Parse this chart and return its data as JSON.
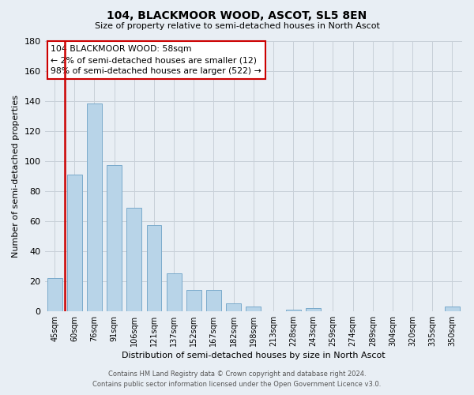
{
  "title": "104, BLACKMOOR WOOD, ASCOT, SL5 8EN",
  "subtitle": "Size of property relative to semi-detached houses in North Ascot",
  "xlabel": "Distribution of semi-detached houses by size in North Ascot",
  "ylabel": "Number of semi-detached properties",
  "categories": [
    "45sqm",
    "60sqm",
    "76sqm",
    "91sqm",
    "106sqm",
    "121sqm",
    "137sqm",
    "152sqm",
    "167sqm",
    "182sqm",
    "198sqm",
    "213sqm",
    "228sqm",
    "243sqm",
    "259sqm",
    "274sqm",
    "289sqm",
    "304sqm",
    "320sqm",
    "335sqm",
    "350sqm"
  ],
  "values": [
    22,
    91,
    138,
    97,
    69,
    57,
    25,
    14,
    14,
    5,
    3,
    0,
    1,
    2,
    0,
    0,
    0,
    0,
    0,
    0,
    3
  ],
  "bar_color": "#b8d4e8",
  "bar_edge_color": "#7aaacb",
  "highlight_color": "#cc0000",
  "red_line_x": 0.5,
  "ylim": [
    0,
    180
  ],
  "yticks": [
    0,
    20,
    40,
    60,
    80,
    100,
    120,
    140,
    160,
    180
  ],
  "annotation_title": "104 BLACKMOOR WOOD: 58sqm",
  "annotation_line1": "← 2% of semi-detached houses are smaller (12)",
  "annotation_line2": "98% of semi-detached houses are larger (522) →",
  "footer_line1": "Contains HM Land Registry data © Crown copyright and database right 2024.",
  "footer_line2": "Contains public sector information licensed under the Open Government Licence v3.0.",
  "grid_color": "#c8d0d8",
  "background_color": "#e8eef4"
}
